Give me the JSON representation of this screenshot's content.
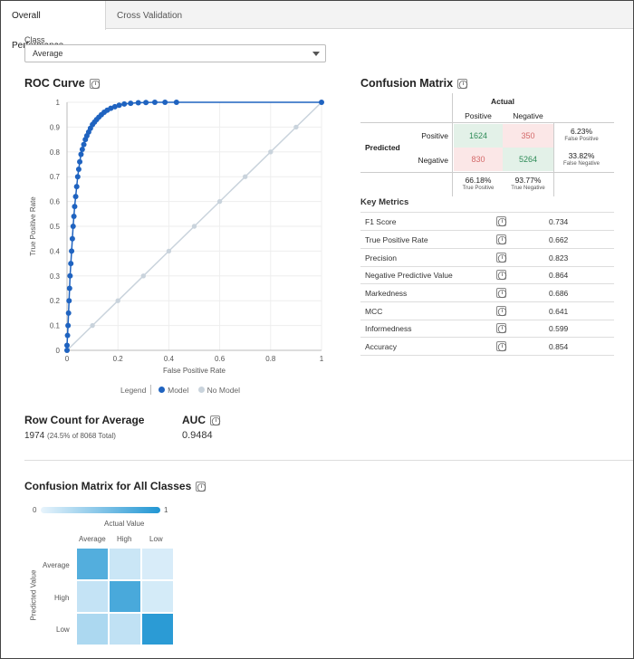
{
  "tabs": [
    {
      "label": "Overall Performance"
    },
    {
      "label": "Cross Validation"
    }
  ],
  "class_selector": {
    "label": "Class",
    "value": "Average"
  },
  "roc": {
    "title": "ROC Curve",
    "chart_data": {
      "type": "scatter",
      "xlabel": "False Positive Rate",
      "ylabel": "True Positive Rate",
      "xlim": [
        0,
        1
      ],
      "ylim": [
        0,
        1
      ],
      "x_ticks": [
        "0",
        "0.2",
        "0.4",
        "0.6",
        "0.8",
        "1"
      ],
      "y_ticks": [
        "0",
        "0.1",
        "0.2",
        "0.3",
        "0.4",
        "0.5",
        "0.6",
        "0.7",
        "0.8",
        "0.9",
        "1"
      ],
      "grid": true,
      "legend": "bottom",
      "series": [
        {
          "name": "Model",
          "color": "#1f63c0",
          "x": [
            0,
            0,
            0.002,
            0.004,
            0.006,
            0.008,
            0.01,
            0.012,
            0.015,
            0.018,
            0.021,
            0.024,
            0.027,
            0.03,
            0.034,
            0.038,
            0.042,
            0.046,
            0.05,
            0.055,
            0.06,
            0.066,
            0.072,
            0.078,
            0.085,
            0.092,
            0.1,
            0.108,
            0.116,
            0.125,
            0.135,
            0.146,
            0.158,
            0.172,
            0.188,
            0.205,
            0.225,
            0.25,
            0.28,
            0.31,
            0.345,
            0.385,
            0.43,
            1
          ],
          "y": [
            0,
            0.02,
            0.06,
            0.1,
            0.15,
            0.2,
            0.25,
            0.3,
            0.35,
            0.4,
            0.45,
            0.5,
            0.54,
            0.58,
            0.62,
            0.66,
            0.7,
            0.73,
            0.76,
            0.79,
            0.81,
            0.83,
            0.85,
            0.865,
            0.88,
            0.895,
            0.91,
            0.92,
            0.93,
            0.94,
            0.95,
            0.96,
            0.968,
            0.976,
            0.982,
            0.988,
            0.993,
            0.996,
            0.998,
            0.999,
            1,
            1,
            1,
            1
          ]
        },
        {
          "name": "No Model",
          "color": "#c9d3dc",
          "x": [
            0,
            0.1,
            0.2,
            0.3,
            0.4,
            0.5,
            0.6,
            0.7,
            0.8,
            0.9,
            1
          ],
          "y": [
            0,
            0.1,
            0.2,
            0.3,
            0.4,
            0.5,
            0.6,
            0.7,
            0.8,
            0.9,
            1
          ]
        }
      ]
    },
    "legend_label": "Legend",
    "legend_model": "Model",
    "legend_nomodel": "No Model"
  },
  "confusion": {
    "title": "Confusion Matrix",
    "actual": "Actual",
    "predicted": "Predicted",
    "col_pos": "Positive",
    "col_neg": "Negative",
    "row_pos": "Positive",
    "row_neg": "Negative",
    "tp": "1624",
    "fp": "350",
    "fn": "830",
    "tn": "5264",
    "fp_rate": "6.23%",
    "fp_rate_label": "False Positive",
    "fn_rate": "33.82%",
    "fn_rate_label": "False Negative",
    "tp_rate": "66.18%",
    "tp_rate_label": "True Positive",
    "tn_rate": "93.77%",
    "tn_rate_label": "True Negative"
  },
  "key_metrics": {
    "title": "Key Metrics",
    "rows": [
      {
        "label": "F1 Score",
        "value": "0.734"
      },
      {
        "label": "True Positive Rate",
        "value": "0.662"
      },
      {
        "label": "Precision",
        "value": "0.823"
      },
      {
        "label": "Negative Predictive Value",
        "value": "0.864"
      },
      {
        "label": "Markedness",
        "value": "0.686"
      },
      {
        "label": "MCC",
        "value": "0.641"
      },
      {
        "label": "Informedness",
        "value": "0.599"
      },
      {
        "label": "Accuracy",
        "value": "0.854"
      }
    ]
  },
  "row_count": {
    "title": "Row Count for Average",
    "value": "1974",
    "detail": "(24.5% of 8068 Total)"
  },
  "auc": {
    "title": "AUC",
    "value": "0.9484"
  },
  "all_classes": {
    "title": "Confusion Matrix for All Classes",
    "scale_min": "0",
    "scale_max": "1",
    "x_label": "Actual Value",
    "y_label": "Predicted Value",
    "classes": [
      "Average",
      "High",
      "Low"
    ],
    "values": [
      [
        0.75,
        0.15,
        0.08
      ],
      [
        0.18,
        0.8,
        0.1
      ],
      [
        0.3,
        0.2,
        0.95
      ]
    ]
  }
}
